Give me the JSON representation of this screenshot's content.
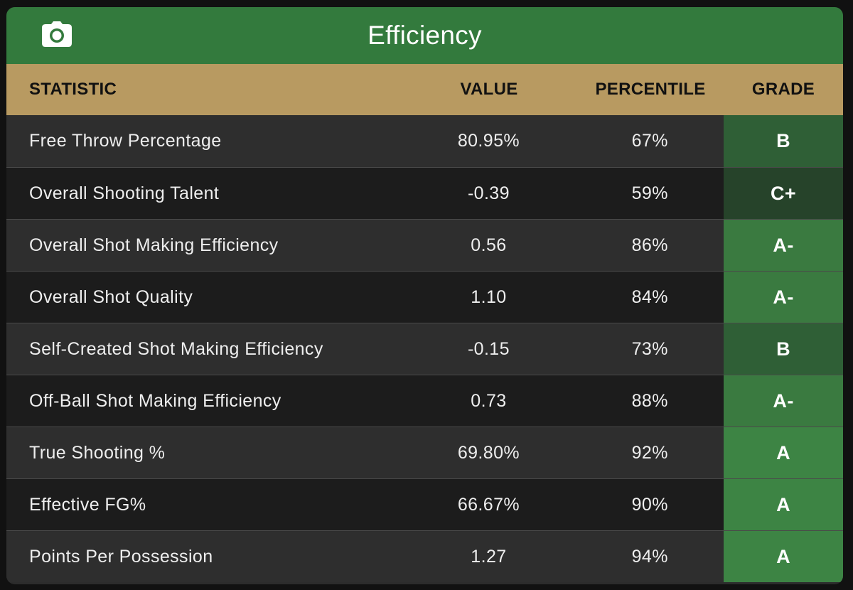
{
  "panel": {
    "title": "Efficiency",
    "camera_icon": "camera-icon",
    "header_bg": "#337a3d",
    "columns_bg": "#b89a61"
  },
  "columns": {
    "statistic": "STATISTIC",
    "value": "VALUE",
    "percentile": "PERCENTILE",
    "grade": "GRADE"
  },
  "rows": [
    {
      "statistic": "Free Throw Percentage",
      "value": "80.95%",
      "percentile": "67%",
      "grade": "B",
      "grade_color": "#2f5f36"
    },
    {
      "statistic": "Overall Shooting Talent",
      "value": "-0.39",
      "percentile": "59%",
      "grade": "C+",
      "grade_color": "#26432a"
    },
    {
      "statistic": "Overall Shot Making Efficiency",
      "value": "0.56",
      "percentile": "86%",
      "grade": "A-",
      "grade_color": "#3a7a40"
    },
    {
      "statistic": "Overall Shot Quality",
      "value": "1.10",
      "percentile": "84%",
      "grade": "A-",
      "grade_color": "#3a7a40"
    },
    {
      "statistic": "Self-Created Shot Making Efficiency",
      "value": "-0.15",
      "percentile": "73%",
      "grade": "B",
      "grade_color": "#2f5f36"
    },
    {
      "statistic": "Off-Ball Shot Making Efficiency",
      "value": "0.73",
      "percentile": "88%",
      "grade": "A-",
      "grade_color": "#3a7a40"
    },
    {
      "statistic": "True Shooting %",
      "value": "69.80%",
      "percentile": "92%",
      "grade": "A",
      "grade_color": "#3d8444"
    },
    {
      "statistic": "Effective FG%",
      "value": "66.67%",
      "percentile": "90%",
      "grade": "A",
      "grade_color": "#3d8444"
    },
    {
      "statistic": "Points Per Possession",
      "value": "1.27",
      "percentile": "94%",
      "grade": "A",
      "grade_color": "#3d8444"
    }
  ]
}
